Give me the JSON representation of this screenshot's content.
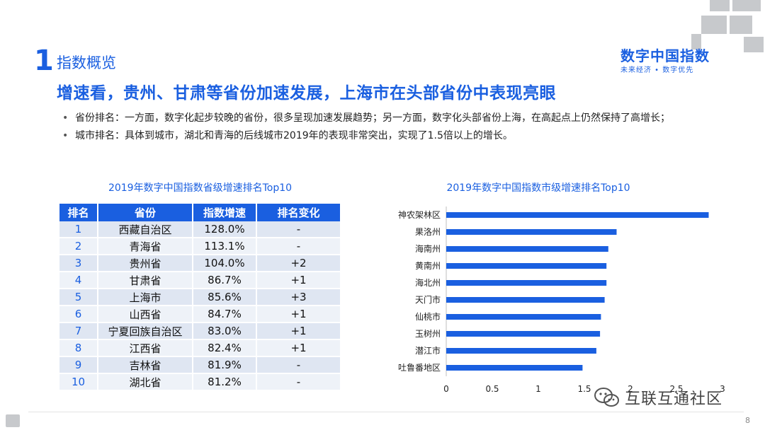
{
  "header": {
    "section_number": "1",
    "section_title": "指数概览",
    "brand_title": "数字中国指数",
    "brand_subtitle": "未来经济 • 数字优先",
    "headline": "增速看，贵州、甘肃等省份加速发展，上海市在头部省份中表现亮眼"
  },
  "bullets": [
    "省份排名：一方面，数字化起步较晚的省份，很多呈现加速发展趋势；另一方面，数字化头部省份上海，在高起点上仍然保持了高增长；",
    "城市排名：具体到城市，湖北和青海的后线城市2019年的表现非常突出，实现了1.5倍以上的增长。"
  ],
  "table": {
    "title": "2019年数字中国指数省级增速排名Top10",
    "headers": [
      "排名",
      "省份",
      "指数增速",
      "排名变化"
    ],
    "rows": [
      [
        "1",
        "西藏自治区",
        "128.0%",
        "-"
      ],
      [
        "2",
        "青海省",
        "113.1%",
        "-"
      ],
      [
        "3",
        "贵州省",
        "104.0%",
        "+2"
      ],
      [
        "4",
        "甘肃省",
        "86.7%",
        "+1"
      ],
      [
        "5",
        "上海市",
        "85.6%",
        "+3"
      ],
      [
        "6",
        "山西省",
        "84.7%",
        "+1"
      ],
      [
        "7",
        "宁夏回族自治区",
        "83.0%",
        "+1"
      ],
      [
        "8",
        "江西省",
        "82.4%",
        "+1"
      ],
      [
        "9",
        "吉林省",
        "81.9%",
        "-"
      ],
      [
        "10",
        "湖北省",
        "81.2%",
        "-"
      ]
    ]
  },
  "chart_data": {
    "type": "bar",
    "orientation": "horizontal",
    "title": "2019年数字中国指数市级增速排名Top10",
    "categories": [
      "神农架林区",
      "果洛州",
      "海南州",
      "黄南州",
      "海北州",
      "天门市",
      "仙桃市",
      "玉树州",
      "潜江市",
      "吐鲁番地区"
    ],
    "values": [
      2.85,
      1.85,
      1.76,
      1.74,
      1.74,
      1.72,
      1.68,
      1.67,
      1.63,
      1.48
    ],
    "xticks": [
      0,
      0.5,
      1,
      1.5,
      2,
      2.5,
      3
    ],
    "xtick_labels": [
      "0",
      "0.5",
      "1",
      "1.5",
      "2",
      "2.5",
      "3"
    ],
    "xlim": [
      0,
      3
    ],
    "bar_color": "#1a5fe0"
  },
  "watermark": {
    "text": "互联互通社区"
  },
  "footer": {
    "page_number": "8"
  },
  "colors": {
    "accent": "#1a5fe0",
    "row_odd": "#dfe6f2",
    "row_even": "#eef2f8"
  }
}
